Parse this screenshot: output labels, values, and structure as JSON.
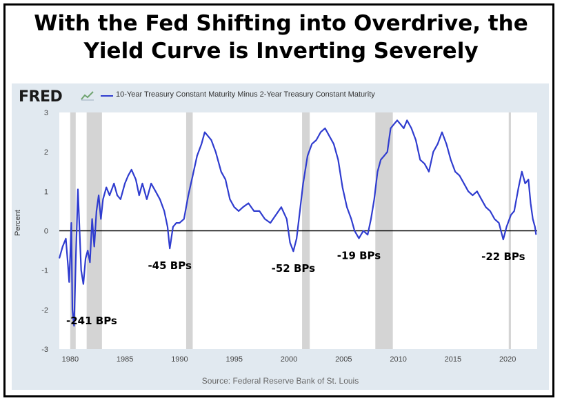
{
  "headline": {
    "line1": "With the Fed Shifting into Overdrive, the",
    "line2": "Yield Curve is Inverting Severely"
  },
  "brand": {
    "logo_text": "FRED",
    "logo_icon": "fred-chart-icon"
  },
  "legend": {
    "label": "10-Year Treasury Constant Maturity Minus 2-Year Treasury Constant Maturity"
  },
  "source": "Source: Federal Reserve Bank of St. Louis",
  "colors": {
    "series": "#2f3ccf",
    "recession": "#d4d4d4",
    "panel": "#e1e9f0",
    "zero_line": "#000000"
  },
  "chart_data": {
    "type": "line",
    "ylabel": "Percent",
    "xlim": [
      1979.0,
      2022.7
    ],
    "ylim": [
      -3,
      3
    ],
    "x_ticks": [
      1980,
      1985,
      1990,
      1995,
      2000,
      2005,
      2010,
      2015,
      2020
    ],
    "y_ticks": [
      -3,
      -2,
      -1,
      0,
      1,
      2,
      3
    ],
    "zero_line": 0,
    "recessions": [
      [
        1980.0,
        1980.5
      ],
      [
        1981.5,
        1982.9
      ],
      [
        1990.6,
        1991.2
      ],
      [
        2001.2,
        2001.9
      ],
      [
        2007.9,
        2009.5
      ],
      [
        2020.1,
        2020.3
      ]
    ],
    "series": [
      {
        "x": [
          1979.0,
          1979.3,
          1979.6,
          1979.8,
          1979.9,
          1980.0,
          1980.1,
          1980.2,
          1980.35,
          1980.5,
          1980.7,
          1980.9,
          1981.0,
          1981.2,
          1981.4,
          1981.6,
          1981.8,
          1982.0,
          1982.2,
          1982.4,
          1982.6,
          1982.8,
          1983.0,
          1983.3,
          1983.6,
          1984.0,
          1984.3,
          1984.6,
          1985.0,
          1985.3,
          1985.6,
          1986.0,
          1986.3,
          1986.6,
          1987.0,
          1987.4,
          1987.8,
          1988.2,
          1988.6,
          1988.9,
          1989.1,
          1989.4,
          1989.7,
          1990.0,
          1990.4,
          1990.8,
          1991.2,
          1991.6,
          1992.0,
          1992.3,
          1992.6,
          1992.9,
          1993.3,
          1993.8,
          1994.2,
          1994.6,
          1995.0,
          1995.4,
          1995.8,
          1996.3,
          1996.8,
          1997.3,
          1997.8,
          1998.3,
          1998.8,
          1999.3,
          1999.8,
          2000.1,
          2000.4,
          2000.7,
          2001.0,
          2001.3,
          2001.7,
          2002.1,
          2002.5,
          2002.9,
          2003.3,
          2003.7,
          2004.1,
          2004.5,
          2004.9,
          2005.3,
          2005.7,
          2006.0,
          2006.4,
          2006.8,
          2007.2,
          2007.5,
          2007.8,
          2008.1,
          2008.4,
          2008.7,
          2009.0,
          2009.3,
          2009.6,
          2009.9,
          2010.2,
          2010.5,
          2010.8,
          2011.2,
          2011.6,
          2012.0,
          2012.4,
          2012.8,
          2013.2,
          2013.6,
          2014.0,
          2014.4,
          2014.8,
          2015.2,
          2015.6,
          2016.0,
          2016.4,
          2016.8,
          2017.2,
          2017.6,
          2018.0,
          2018.4,
          2018.8,
          2019.2,
          2019.6,
          2019.9,
          2020.3,
          2020.6,
          2021.0,
          2021.3,
          2021.6,
          2021.9,
          2022.1,
          2022.3,
          2022.5,
          2022.6
        ],
        "y": [
          -0.7,
          -0.4,
          -0.2,
          -0.9,
          -1.3,
          -0.6,
          0.2,
          -2.0,
          -2.41,
          -0.8,
          1.05,
          -0.3,
          -1.0,
          -1.35,
          -0.7,
          -0.5,
          -0.8,
          0.3,
          -0.4,
          0.5,
          0.9,
          0.3,
          0.8,
          1.1,
          0.9,
          1.2,
          0.9,
          0.8,
          1.2,
          1.4,
          1.55,
          1.3,
          0.9,
          1.2,
          0.8,
          1.2,
          1.0,
          0.8,
          0.5,
          0.1,
          -0.45,
          0.1,
          0.2,
          0.2,
          0.3,
          0.9,
          1.4,
          1.9,
          2.2,
          2.5,
          2.4,
          2.3,
          2.0,
          1.5,
          1.3,
          0.8,
          0.6,
          0.5,
          0.6,
          0.7,
          0.5,
          0.5,
          0.3,
          0.2,
          0.4,
          0.6,
          0.3,
          -0.3,
          -0.52,
          -0.2,
          0.5,
          1.2,
          1.9,
          2.2,
          2.3,
          2.5,
          2.6,
          2.4,
          2.2,
          1.8,
          1.1,
          0.6,
          0.3,
          0.0,
          -0.19,
          0.0,
          -0.1,
          0.3,
          0.8,
          1.5,
          1.8,
          1.9,
          2.0,
          2.6,
          2.7,
          2.8,
          2.7,
          2.6,
          2.8,
          2.6,
          2.3,
          1.8,
          1.7,
          1.5,
          2.0,
          2.2,
          2.5,
          2.2,
          1.8,
          1.5,
          1.4,
          1.2,
          1.0,
          0.9,
          1.0,
          0.8,
          0.6,
          0.5,
          0.3,
          0.2,
          -0.22,
          0.1,
          0.4,
          0.5,
          1.1,
          1.5,
          1.2,
          1.3,
          0.7,
          0.3,
          0.1,
          -0.1
        ]
      }
    ],
    "annotations": [
      {
        "label": "-241 BPs",
        "x": 1980.35,
        "y": -2.41
      },
      {
        "label": "-45 BPs",
        "x": 1989.1,
        "y": -0.45
      },
      {
        "label": "-52 BPs",
        "x": 2000.4,
        "y": -0.52
      },
      {
        "label": "-19 BPs",
        "x": 2006.4,
        "y": -0.19
      },
      {
        "label": "-22 BPs",
        "x": 2019.6,
        "y": -0.22
      }
    ]
  }
}
